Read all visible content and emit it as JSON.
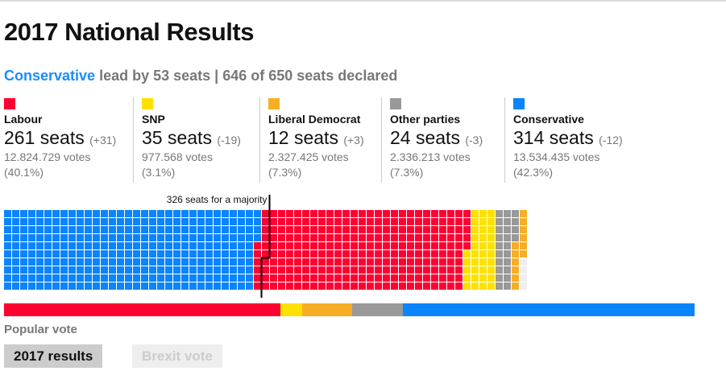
{
  "title": "2017 National Results",
  "lead": {
    "party": "Conservative",
    "text": "lead by 53 seats | 646 of 650 seats declared"
  },
  "parties": [
    {
      "name": "Labour",
      "seats": "261 seats",
      "seat_count": 261,
      "change": "(+31)",
      "votes": "12.824.729 votes",
      "pct": "(40.1%)",
      "vote_pct": 40.1,
      "color": "#ff0033"
    },
    {
      "name": "SNP",
      "seats": "35 seats",
      "seat_count": 35,
      "change": "(-19)",
      "votes": "977.568 votes",
      "pct": "(3.1%)",
      "vote_pct": 3.1,
      "color": "#ffe100"
    },
    {
      "name": "Liberal Democrat",
      "seats": "12 seats",
      "seat_count": 12,
      "change": "(+3)",
      "votes": "2.327.425 votes",
      "pct": "(7.3%)",
      "vote_pct": 7.3,
      "color": "#f7ae26"
    },
    {
      "name": "Other parties",
      "seats": "24 seats",
      "seat_count": 24,
      "change": "(-3)",
      "votes": "2.336.213 votes",
      "pct": "(7.3%)",
      "vote_pct": 7.3,
      "color": "#999999"
    },
    {
      "name": "Conservative",
      "seats": "314 seats",
      "seat_count": 314,
      "change": "(-12)",
      "votes": "13.534.435 votes",
      "pct": "(42.3%)",
      "vote_pct": 42.3,
      "color": "#0a84ff"
    }
  ],
  "waffle": {
    "total_seats": 650,
    "majority": 326,
    "majority_label": "326 seats for a majority",
    "undeclared_color": "#eeeeee",
    "order": [
      "Conservative",
      "Labour",
      "SNP",
      "Other parties",
      "Liberal Democrat"
    ]
  },
  "popular_vote_label": "Popular vote",
  "popular_vote_order": [
    "Labour",
    "SNP",
    "Liberal Democrat",
    "Other parties",
    "Conservative"
  ],
  "buttons": {
    "results": "2017 results",
    "brexit": "Brexit vote"
  }
}
